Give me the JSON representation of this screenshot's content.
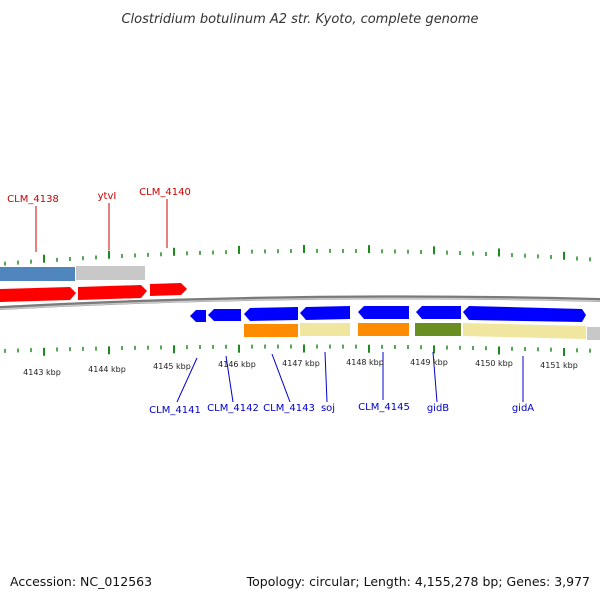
{
  "title": "Clostridium botulinum A2 str. Kyoto, complete genome",
  "footer": {
    "accession": "Accession: NC_012563",
    "summary": "Topology: circular; Length: 4,155,278 bp; Genes: 3,977"
  },
  "colors": {
    "forward_cds": "#ff0000",
    "reverse_cds": "#0000ff",
    "label_forward": "#cc0000",
    "label_reverse": "#0000cc",
    "tick": "#1e8a1e",
    "backbone": "#888888",
    "steel_blue": "#4f86bd",
    "grey": "#c8c8c8",
    "orange": "#ff8c00",
    "khaki": "#f0e6a0",
    "olive": "#6b8e23"
  },
  "kbp_labels": [
    "4143 kbp",
    "4144 kbp",
    "4145 kbp",
    "4146 kbp",
    "4147 kbp",
    "4148 kbp",
    "4149 kbp",
    "4150 kbp",
    "4151 kbp"
  ],
  "genes_top": [
    {
      "label": "CLM_4138"
    },
    {
      "label": "ytvI"
    },
    {
      "label": "CLM_4140"
    }
  ],
  "genes_bottom": [
    {
      "label": "CLM_4141"
    },
    {
      "label": "CLM_4142"
    },
    {
      "label": "CLM_4143"
    },
    {
      "label": "soj"
    },
    {
      "label": "CLM_4145"
    },
    {
      "label": "gidB"
    },
    {
      "label": "gidA"
    }
  ]
}
